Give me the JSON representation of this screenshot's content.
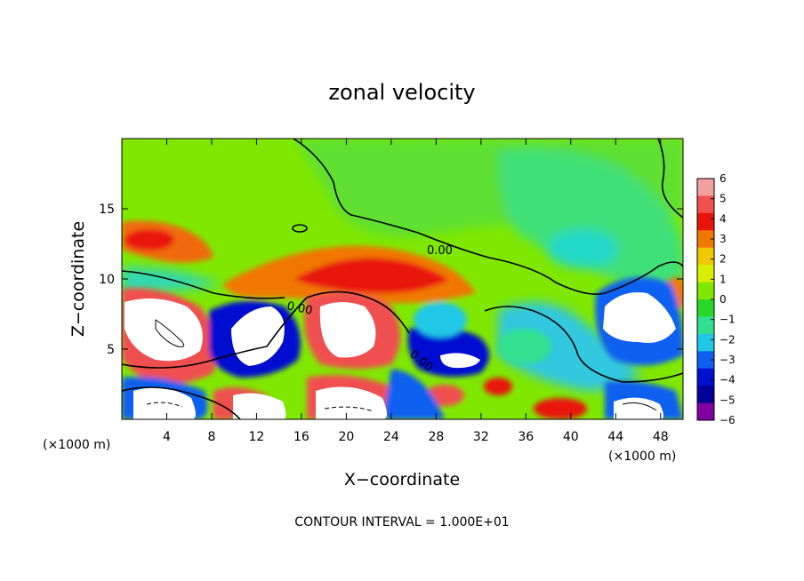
{
  "chart_data": {
    "type": "heatmap",
    "title": "zonal velocity",
    "xlabel": "X−coordinate",
    "ylabel": "Z−coordinate",
    "x_unit_left": "(×1000 m)",
    "x_unit_right": "(×1000 m)",
    "xlim": [
      0,
      50
    ],
    "ylim": [
      0,
      20
    ],
    "x_ticks": [
      4,
      8,
      12,
      16,
      20,
      24,
      28,
      32,
      36,
      40,
      44,
      48
    ],
    "x_tick_labels": [
      "4",
      "8",
      "12",
      "16",
      "20",
      "24",
      "28",
      "32",
      "36",
      "40",
      "44",
      "48"
    ],
    "y_ticks": [
      5,
      10,
      15
    ],
    "y_tick_labels": [
      "5",
      "10",
      "15"
    ],
    "colorbar": {
      "range": [
        -6,
        6
      ],
      "levels": [
        6,
        5,
        4,
        3,
        2,
        1,
        0,
        -1,
        -2,
        -3,
        -4,
        -5,
        -6
      ],
      "labels": [
        "6",
        "5",
        "4",
        "3",
        "2",
        "1",
        "0",
        "−1",
        "−2",
        "−3",
        "−4",
        "−5",
        "−6"
      ],
      "colors": [
        "#f4a0a0",
        "#f05050",
        "#e8140a",
        "#f07800",
        "#f0c800",
        "#d8f000",
        "#80e800",
        "#28d828",
        "#30e090",
        "#20c8e8",
        "#1060f0",
        "#0010d0",
        "#00009a",
        "#8000a0"
      ]
    },
    "contour_label": "0.00",
    "features": [
      {
        "kind": "red-band",
        "x": [
          0,
          7
        ],
        "y": [
          11.5,
          14
        ]
      },
      {
        "kind": "red-band",
        "x": [
          14,
          30
        ],
        "y": [
          9,
          12.5
        ]
      },
      {
        "kind": "white-over",
        "x": [
          0,
          7
        ],
        "y": [
          4,
          9
        ]
      },
      {
        "kind": "white-over",
        "x": [
          9,
          14
        ],
        "y": [
          4,
          8
        ]
      },
      {
        "kind": "white-over",
        "x": [
          17,
          22
        ],
        "y": [
          4,
          8
        ]
      },
      {
        "kind": "white-over",
        "x": [
          43,
          48
        ],
        "y": [
          5,
          8
        ]
      },
      {
        "kind": "blue-under",
        "x": [
          27,
          32
        ],
        "y": [
          3,
          6
        ]
      },
      {
        "kind": "cyan-region",
        "x": [
          40,
          50
        ],
        "y": [
          10,
          15
        ]
      }
    ],
    "footnote": "CONTOUR INTERVAL = 1.000E+01"
  }
}
